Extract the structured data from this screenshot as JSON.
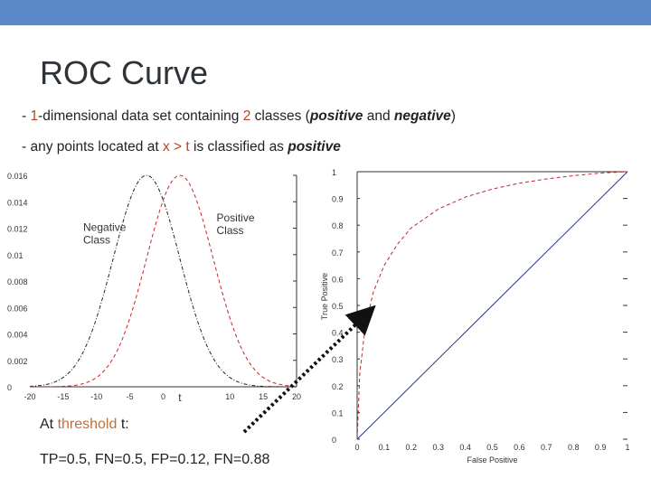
{
  "title": "ROC Curve",
  "bullets": [
    {
      "p1": "- ",
      "n": "1",
      "p2": "-dimensional data set containing ",
      "k": "2",
      "p3": " classes (",
      "pos": "positive",
      "p4": " and ",
      "neg": "negative",
      "p5": ")"
    },
    {
      "p1": "- any points located at ",
      "expr": "x > t",
      "p2": " is classified as ",
      "pos": "positive"
    }
  ],
  "caption": {
    "prefix": "At ",
    "word": "threshold",
    "space": " ",
    "t": "t",
    "suffix": ":"
  },
  "rates": "TP=0.5, FN=0.5, FP=0.12, FN=0.88",
  "colors": {
    "header_bar": "#5b88c6",
    "highlight": "#b8431f",
    "positive_curve": "#c0282d",
    "negative_curve": "#222222",
    "diagonal": "#2a3a8a",
    "arrow": "#111111"
  },
  "chart_data": [
    {
      "type": "line",
      "title": "",
      "xlabel": "",
      "ylabel": "",
      "xlim": [
        -20,
        20
      ],
      "ylim": [
        0,
        0.016
      ],
      "x_ticks": [
        "-20",
        "-15",
        "-10",
        "-5",
        "0",
        "5",
        "10",
        "15",
        "20"
      ],
      "y_ticks": [
        "0",
        "0.002",
        "0.004",
        "0.006",
        "0.008",
        "0.01",
        "0.012",
        "0.014",
        "0.016"
      ],
      "x_ticks_shown": [
        "-20",
        "-15",
        "-10",
        "-5",
        "0",
        "t",
        "10",
        "15",
        "20"
      ],
      "y_ticks_shown": [
        "0",
        "0.002",
        "0.004",
        "0.006",
        "0.008",
        "0.01",
        "0.012",
        "0.014",
        "0.016"
      ],
      "threshold_label": "t",
      "threshold_x": 2.5,
      "annotations": [
        {
          "text": [
            "Negative",
            "Class"
          ],
          "x": -12,
          "y": 0.0118
        },
        {
          "text": [
            "Positive",
            "Class"
          ],
          "x": 8,
          "y": 0.0125
        }
      ],
      "series": [
        {
          "name": "Negative Class",
          "style": "dash-dot",
          "color": "#222222",
          "mean": -2.5,
          "sd": 5,
          "peak": 0.016,
          "x": [
            -20,
            -15,
            -10,
            -5,
            -2.5,
            0,
            5,
            10,
            15,
            20
          ],
          "y": [
            4e-05,
            0.0007,
            0.00518,
            0.01411,
            0.016,
            0.01411,
            0.00518,
            0.0007,
            4e-05,
            0.0
          ]
        },
        {
          "name": "Positive Class",
          "style": "dash",
          "color": "#c0282d",
          "mean": 2.5,
          "sd": 5,
          "peak": 0.016,
          "x": [
            -20,
            -15,
            -10,
            -5,
            0,
            2.5,
            5,
            10,
            15,
            20
          ],
          "y": [
            0.0,
            4e-05,
            0.0007,
            0.00518,
            0.01411,
            0.016,
            0.01411,
            0.00518,
            0.0007,
            4e-05
          ]
        }
      ]
    },
    {
      "type": "line",
      "title": "",
      "xlabel": "False Positive",
      "ylabel": "True Positive",
      "xlim": [
        0,
        1
      ],
      "ylim": [
        0,
        1
      ],
      "x_ticks": [
        "0",
        "0.1",
        "0.2",
        "0.3",
        "0.4",
        "0.5",
        "0.6",
        "0.7",
        "0.8",
        "0.9",
        "1"
      ],
      "y_ticks": [
        "0",
        "0.1",
        "0.2",
        "0.3",
        "0.4",
        "0.5",
        "0.6",
        "0.7",
        "0.8",
        "0.9",
        "1"
      ],
      "series": [
        {
          "name": "ROC",
          "style": "dash",
          "color": "#c0282d",
          "x": [
            0,
            0.01,
            0.03,
            0.06,
            0.1,
            0.15,
            0.2,
            0.3,
            0.4,
            0.5,
            0.6,
            0.7,
            0.8,
            0.9,
            1.0
          ],
          "y": [
            0,
            0.25,
            0.42,
            0.55,
            0.65,
            0.73,
            0.79,
            0.86,
            0.905,
            0.935,
            0.957,
            0.973,
            0.985,
            0.995,
            1.0
          ]
        },
        {
          "name": "Diagonal",
          "style": "solid",
          "color": "#2a3a8a",
          "x": [
            0,
            1
          ],
          "y": [
            0,
            1
          ]
        }
      ]
    }
  ]
}
